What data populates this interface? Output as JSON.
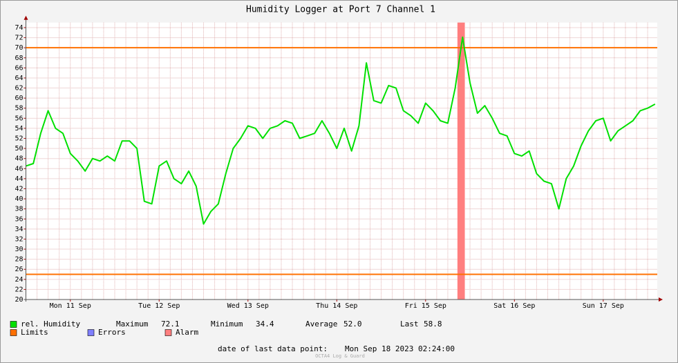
{
  "chart_data": {
    "type": "line",
    "title": "Humidity Logger at Port 7 Channel 1",
    "x": [
      0,
      2,
      4,
      6,
      8,
      10,
      12,
      14,
      16,
      18,
      20,
      22,
      24,
      26,
      28,
      30,
      32,
      34,
      36,
      38,
      40,
      42,
      44,
      46,
      48,
      50,
      52,
      54,
      56,
      58,
      60,
      62,
      64,
      66,
      68,
      70,
      72,
      74,
      76,
      78,
      80,
      82,
      84,
      86,
      88,
      90,
      92,
      94,
      96,
      98,
      100,
      102,
      104,
      106,
      108,
      110,
      112,
      114,
      116,
      118,
      120,
      122,
      124,
      126,
      128,
      130,
      132,
      134,
      136,
      138,
      140,
      142,
      144,
      146,
      148,
      150,
      152,
      154,
      156,
      158,
      160,
      162,
      164,
      166,
      168,
      170
    ],
    "series": [
      {
        "name": "rel. Humidity",
        "color": "#00e000",
        "values": [
          46.5,
          47,
          53,
          57.5,
          54,
          53,
          49,
          47.5,
          45.5,
          48,
          47.5,
          48.5,
          47.5,
          51.5,
          51.5,
          50,
          39.5,
          39,
          46.5,
          47.5,
          44,
          43,
          45.5,
          42.5,
          35,
          37.5,
          39,
          45,
          50,
          52,
          54.5,
          54,
          52,
          54,
          54.5,
          55.5,
          55,
          52,
          52.5,
          53,
          55.5,
          53,
          50,
          54,
          49.5,
          54.5,
          67,
          59.5,
          59,
          62.5,
          62,
          57.5,
          56.5,
          55,
          59,
          57.5,
          55.5,
          55,
          62,
          72.1,
          63,
          57,
          58.5,
          56,
          53,
          52.5,
          49,
          48.5,
          49.5,
          45,
          43.5,
          43,
          38,
          44,
          46.5,
          50.5,
          53.5,
          55.5,
          56,
          51.5,
          53.5,
          54.5,
          55.5,
          57.5,
          58,
          58.8
        ]
      }
    ],
    "xlim": [
      0,
      170.6
    ],
    "xticks": [
      {
        "value": 12,
        "label": "Mon 11 Sep"
      },
      {
        "value": 36,
        "label": "Tue 12 Sep"
      },
      {
        "value": 60,
        "label": "Wed 13 Sep"
      },
      {
        "value": 84,
        "label": "Thu 14 Sep"
      },
      {
        "value": 108,
        "label": "Fri 15 Sep"
      },
      {
        "value": 132,
        "label": "Sat 16 Sep"
      },
      {
        "value": 156,
        "label": "Sun 17 Sep"
      }
    ],
    "ylim": [
      20,
      75
    ],
    "yticks": [
      20,
      22,
      24,
      26,
      28,
      30,
      32,
      34,
      36,
      38,
      40,
      42,
      44,
      46,
      48,
      50,
      52,
      54,
      56,
      58,
      60,
      62,
      64,
      66,
      68,
      70,
      72,
      74
    ],
    "grid": true,
    "xgrid_step": 3,
    "limits": {
      "name": "Limits",
      "color": "#ff7000",
      "values": [
        70,
        25
      ]
    },
    "errors": {
      "name": "Errors",
      "color": "#7f7fff"
    },
    "alarm": {
      "name": "Alarm",
      "color": "#ff7f7f",
      "bands": [
        [
          116.6,
          118.6
        ]
      ]
    },
    "stats": [
      {
        "label": "Maximum",
        "value": "72.1"
      },
      {
        "label": "Minimum",
        "value": "34.4"
      },
      {
        "label": "Average",
        "value": "52.0"
      },
      {
        "label": "Last",
        "value": "58.8"
      }
    ],
    "footer": {
      "label": "date of last data point:",
      "date": "Mon Sep 18 2023 02:24:00"
    },
    "watermark": "OCTA4 Log & Guard"
  }
}
